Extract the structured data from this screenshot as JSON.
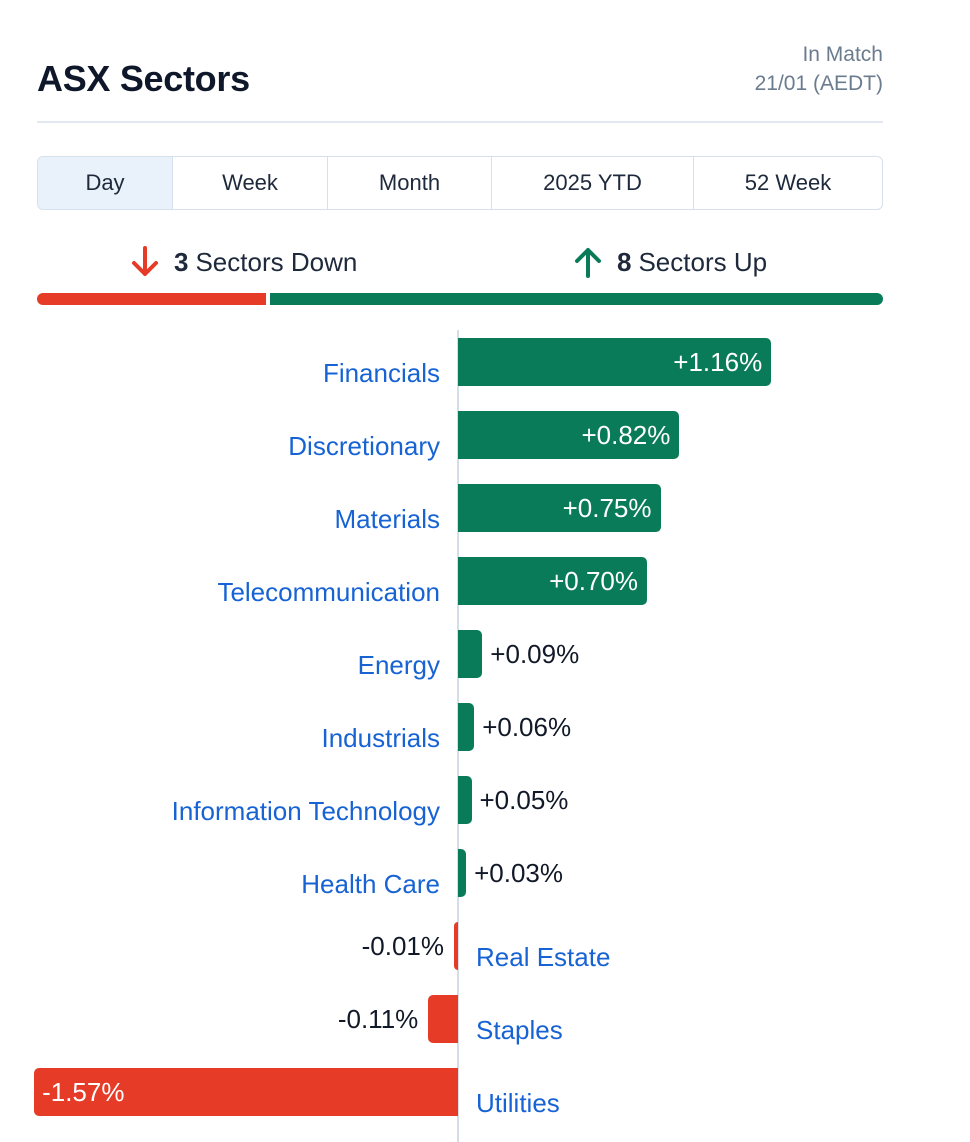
{
  "header": {
    "title": "ASX Sectors",
    "status_line1": "In Match",
    "status_line2": "21/01 (AEDT)"
  },
  "tabs": [
    {
      "label": "Day",
      "active": true
    },
    {
      "label": "Week",
      "active": false
    },
    {
      "label": "Month",
      "active": false
    },
    {
      "label": "2025 YTD",
      "active": false
    },
    {
      "label": "52 Week",
      "active": false
    }
  ],
  "summary": {
    "down_count": "3",
    "down_label": "Sectors Down",
    "up_count": "8",
    "up_label": "Sectors Up",
    "down_icon": "arrow-down-icon",
    "up_icon": "arrow-up-icon"
  },
  "colors": {
    "positive": "#0a7b59",
    "negative": "#e63b27",
    "link": "#1763d4"
  },
  "chart_data": {
    "type": "bar",
    "categories": [
      "Financials",
      "Discretionary",
      "Materials",
      "Telecommunication",
      "Energy",
      "Industrials",
      "Information Technology",
      "Health Care",
      "Real Estate",
      "Staples",
      "Utilities"
    ],
    "values": [
      1.16,
      0.82,
      0.75,
      0.7,
      0.09,
      0.06,
      0.05,
      0.03,
      -0.01,
      -0.11,
      -1.57
    ],
    "value_labels": [
      "+1.16%",
      "+0.82%",
      "+0.75%",
      "+0.70%",
      "+0.09%",
      "+0.06%",
      "+0.05%",
      "+0.03%",
      "-0.01%",
      "-0.11%",
      "-1.57%"
    ],
    "title": "",
    "xlabel": "",
    "ylabel": "",
    "unit": "%"
  }
}
